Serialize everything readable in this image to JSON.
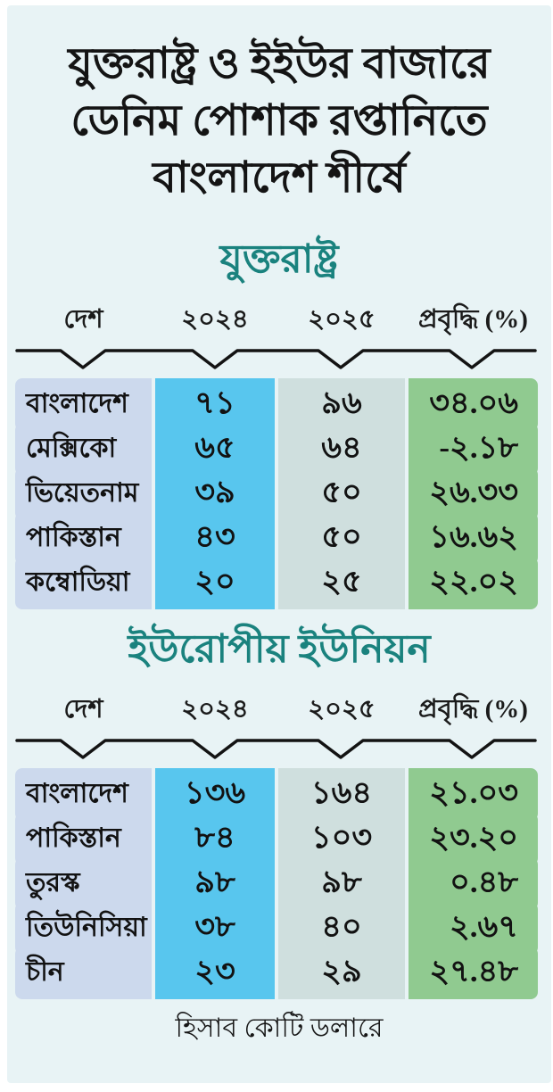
{
  "colors": {
    "panel_background": "#e8f3f5",
    "page_frame": "#ffffff",
    "section_title_teal": "#1a827e",
    "country_column": "#ccd9ed",
    "year_2024_column": "#58c6ee",
    "year_2025_column": "#cfdfde",
    "growth_column": "#90ca90",
    "text_ink": "#141414"
  },
  "title": {
    "line1": "যুক্তরাষ্ট্র ও ইইউর বাজারে",
    "line2": "ডেনিম পোশাক রপ্তানিতে",
    "line3": "বাংলাদেশ শীর্ষে"
  },
  "tables": [
    {
      "title": "যুক্তরাষ্ট্র",
      "columns": [
        "দেশ",
        "২০২৪",
        "২০২৫",
        "প্রবৃদ্ধি (%)"
      ],
      "rows_display": [
        [
          "বাংলাদেশ",
          "৭১",
          "৯৬",
          "৩৪.০৬"
        ],
        [
          "মেক্সিকো",
          "৬৫",
          "৬৪",
          "-২.১৮"
        ],
        [
          "ভিয়েতনাম",
          "৩৯",
          "৫০",
          "২৬.৩৩"
        ],
        [
          "পাকিস্তান",
          "৪৩",
          "৫০",
          "১৬.৬২"
        ],
        [
          "কম্বোডিয়া",
          "২০",
          "২৫",
          "২২.০২"
        ]
      ]
    },
    {
      "title": "ইউরোপীয় ইউনিয়ন",
      "columns": [
        "দেশ",
        "২০২৪",
        "২০২৫",
        "প্রবৃদ্ধি (%)"
      ],
      "rows_display": [
        [
          "বাংলাদেশ",
          "১৩৬",
          "১৬৪",
          "২১.০৩"
        ],
        [
          "পাকিস্তান",
          "৮৪",
          "১০৩",
          "২৩.২০"
        ],
        [
          "তুরস্ক",
          "৯৮",
          "৯৮",
          "০.৪৮"
        ],
        [
          "তিউনিসিয়া",
          "৩৮",
          "৪০",
          "২.৬৭"
        ],
        [
          "চীন",
          "২৩",
          "২৯",
          "২৭.৪৮"
        ]
      ]
    }
  ],
  "footer": {
    "note": "হিসাব কোটি ডলারে"
  },
  "chart_data": [
    {
      "type": "table",
      "title": "যুক্তরাষ্ট্র",
      "columns": [
        "দেশ",
        "২০২৪",
        "২০২৫",
        "প্রবৃদ্ধি (%)"
      ],
      "rows": [
        {
          "country": "বাংলাদেশ",
          "y2024": 71,
          "y2025": 96,
          "growth_pct": 34.06
        },
        {
          "country": "মেক্সিকো",
          "y2024": 65,
          "y2025": 64,
          "growth_pct": -2.18
        },
        {
          "country": "ভিয়েতনাম",
          "y2024": 39,
          "y2025": 50,
          "growth_pct": 26.33
        },
        {
          "country": "পাকিস্তান",
          "y2024": 43,
          "y2025": 50,
          "growth_pct": 16.62
        },
        {
          "country": "কম্বোডিয়া",
          "y2024": 20,
          "y2025": 25,
          "growth_pct": 22.02
        }
      ],
      "unit_note": "হিসাব কোটি ডলারে"
    },
    {
      "type": "table",
      "title": "ইউরোপীয় ইউনিয়ন",
      "columns": [
        "দেশ",
        "২০২৪",
        "২০২৫",
        "প্রবৃদ্ধি (%)"
      ],
      "rows": [
        {
          "country": "বাংলাদেশ",
          "y2024": 136,
          "y2025": 164,
          "growth_pct": 21.03
        },
        {
          "country": "পাকিস্তান",
          "y2024": 84,
          "y2025": 103,
          "growth_pct": 23.2
        },
        {
          "country": "তুরস্ক",
          "y2024": 98,
          "y2025": 98,
          "growth_pct": 0.48
        },
        {
          "country": "তিউনিসিয়া",
          "y2024": 38,
          "y2025": 40,
          "growth_pct": 2.67
        },
        {
          "country": "চীন",
          "y2024": 23,
          "y2025": 29,
          "growth_pct": 27.48
        }
      ],
      "unit_note": "হিসাব কোটি ডলারে"
    }
  ]
}
